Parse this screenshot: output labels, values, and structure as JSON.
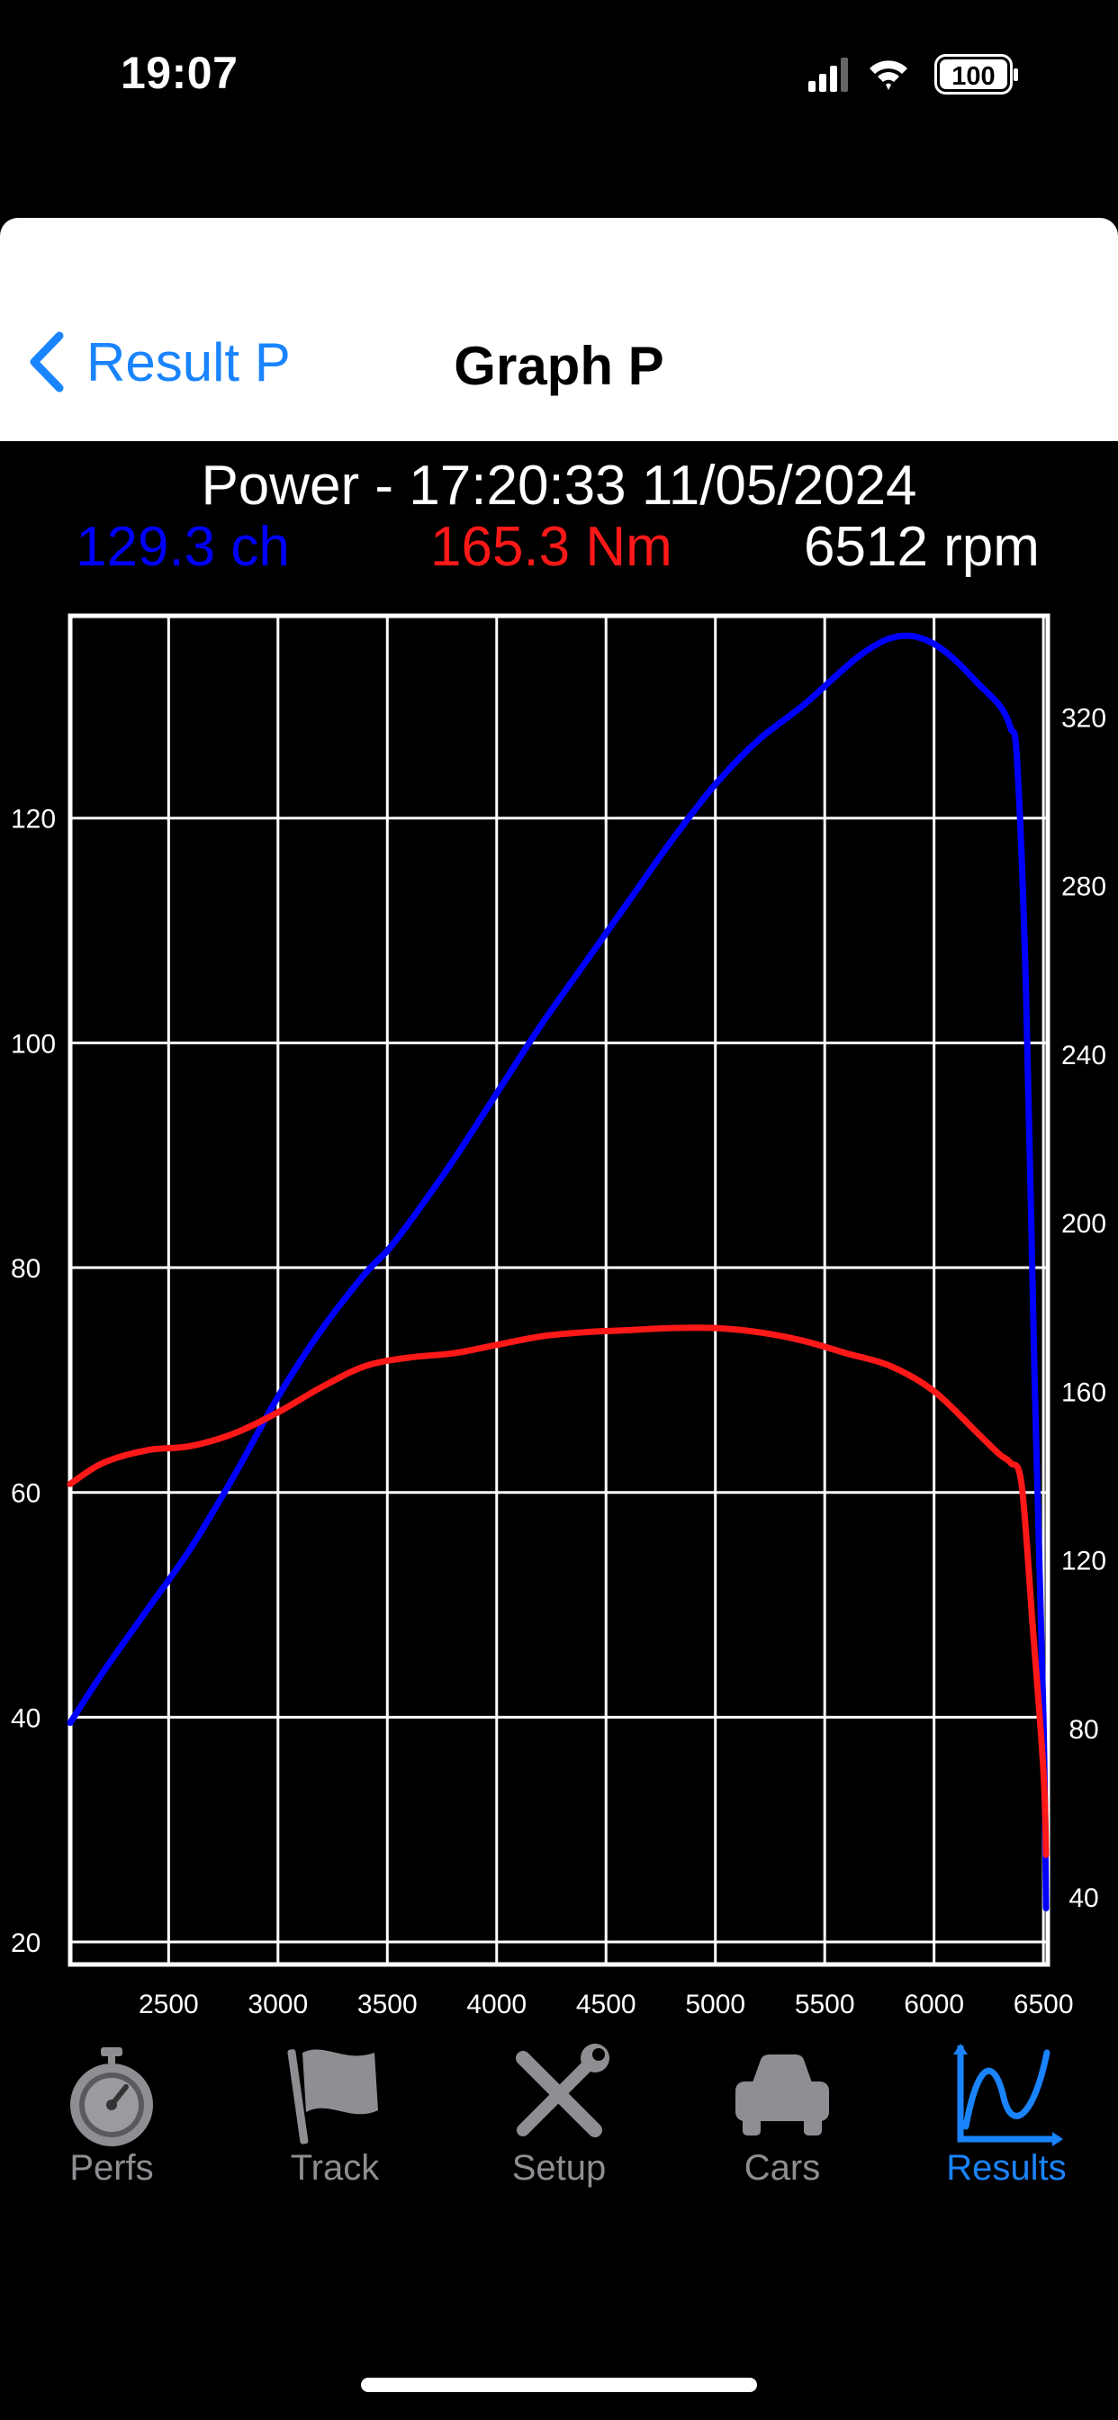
{
  "status": {
    "time": "19:07",
    "battery": "100"
  },
  "nav": {
    "back_label": "Result P",
    "title": "Graph P"
  },
  "header": {
    "title": "Power - 17:20:33 11/05/2024",
    "power": "129.3 ch",
    "torque": "165.3 Nm",
    "rpm": "6512 rpm"
  },
  "colors": {
    "power": "#0000ff",
    "torque": "#ff1818",
    "accent": "#1a84ff",
    "inactive": "#8e8e93"
  },
  "chart_data": {
    "type": "line",
    "title": "",
    "xlabel": "",
    "ylabel": "",
    "y2label": "",
    "xlim": [
      2050,
      6520
    ],
    "x_ticks": [
      2500,
      3000,
      3500,
      4000,
      4500,
      5000,
      5500,
      6000,
      6500
    ],
    "ylim": [
      18,
      138
    ],
    "y_ticks": [
      20,
      40,
      60,
      80,
      100,
      120
    ],
    "y2lim": [
      24,
      344
    ],
    "y2_ticks": [
      40,
      80,
      120,
      160,
      200,
      240,
      280,
      320
    ],
    "grid": true,
    "series": [
      {
        "name": "",
        "axis": "left",
        "color": "#0000ff",
        "x": [
          2050,
          2200,
          2400,
          2600,
          2800,
          3000,
          3200,
          3400,
          3500,
          3600,
          3800,
          4000,
          4200,
          4400,
          4600,
          4800,
          5000,
          5200,
          5400,
          5600,
          5700,
          5800,
          5900,
          6000,
          6100,
          6200,
          6300,
          6350,
          6380,
          6420,
          6460,
          6500,
          6512
        ],
        "y": [
          39.5,
          44,
          49.5,
          55,
          61.5,
          68.5,
          74.5,
          79.5,
          81.5,
          84,
          89.5,
          95.5,
          101.5,
          107,
          112.5,
          118,
          123,
          127,
          130,
          133.5,
          135,
          136,
          136.2,
          135.5,
          134,
          132,
          130,
          128,
          125,
          105,
          70,
          40,
          23
        ]
      },
      {
        "name": "",
        "axis": "right",
        "color": "#ff1818",
        "x": [
          2050,
          2200,
          2400,
          2600,
          2800,
          3000,
          3200,
          3400,
          3600,
          3800,
          4000,
          4200,
          4400,
          4600,
          4800,
          5000,
          5200,
          5400,
          5600,
          5800,
          6000,
          6200,
          6300,
          6350,
          6400,
          6450,
          6500,
          6512
        ],
        "y": [
          138,
          143,
          146,
          147,
          150,
          155,
          161,
          166,
          168,
          169,
          171,
          173,
          174,
          174.5,
          175,
          175,
          174,
          172,
          169,
          166,
          160,
          150,
          145,
          143,
          138,
          105,
          70,
          50
        ]
      }
    ]
  },
  "tabs": [
    {
      "label": "Perfs",
      "icon": "stopwatch-icon"
    },
    {
      "label": "Track",
      "icon": "flag-icon"
    },
    {
      "label": "Setup",
      "icon": "tools-icon"
    },
    {
      "label": "Cars",
      "icon": "car-icon"
    },
    {
      "label": "Results",
      "icon": "graph-icon",
      "active": true
    }
  ]
}
